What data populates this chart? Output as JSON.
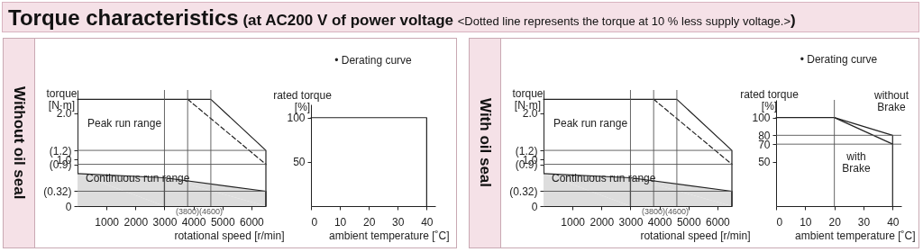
{
  "chart_data": [
    {
      "type": "line",
      "title": "Torque characteristics (at AC200 V of power voltage <Dotted line represents the torque at 10 % less supply voltage.>)",
      "subtitle": "Without oil seal",
      "xlabel": "rotational speed [r/min]",
      "ylabel": "torque\n[N·m]",
      "xlim": [
        0,
        6500
      ],
      "ylim": [
        0,
        2.5
      ],
      "xticks": [
        1000,
        2000,
        3000,
        4000,
        5000,
        6000
      ],
      "yticks": [
        0,
        {
          "value": 0.32,
          "label": "(0.32)"
        },
        {
          "value": 0.9,
          "label": "(0.9)"
        },
        {
          "value": 1,
          "label": "1.0"
        },
        {
          "value": 1.2,
          "label": "(1.2)"
        },
        {
          "value": 2,
          "label": "2.0"
        }
      ],
      "series": [
        {
          "type": "area",
          "color": "#dddddd",
          "x": [
            0,
            3000,
            6500
          ],
          "values": [
            0.7,
            0.61,
            0.32
          ]
        },
        {
          "color": "#222222",
          "x": [
            0,
            4600,
            6500,
            6500
          ],
          "values": [
            2.3,
            2.3,
            1.2,
            0
          ]
        },
        {
          "color": "#222222",
          "line_style": "dashed",
          "x": [
            3800,
            6500
          ],
          "values": [
            2.3,
            0.9
          ]
        }
      ],
      "ref_lines": [
        {
          "axis": "y",
          "value": 1.2,
          "color": "#555555"
        },
        {
          "axis": "y",
          "value": 0.9,
          "color": "#555555"
        },
        {
          "axis": "y",
          "value": 0.32,
          "color": "#555555"
        },
        {
          "axis": "x",
          "value": 3000,
          "color": "#555555"
        },
        {
          "axis": "x",
          "value": 3800,
          "color": "#555555"
        },
        {
          "axis": "x",
          "value": 4600,
          "color": "#555555"
        }
      ],
      "annotations": [
        "Peak run range",
        "Continuous run range",
        "(3800)",
        "(4600)"
      ]
    },
    {
      "type": "line",
      "title": "• Derating curve",
      "xlabel": "ambient temperature [˚C]",
      "ylabel": "rated torque\n[%]",
      "xlim": [
        0,
        43
      ],
      "ylim": [
        0,
        115
      ],
      "xticks": [
        0,
        10,
        20,
        30,
        40
      ],
      "yticks": [
        50,
        100
      ],
      "series": [
        {
          "color": "#222222",
          "x": [
            0,
            40,
            40
          ],
          "values": [
            100,
            100,
            0
          ]
        }
      ]
    },
    {
      "type": "line",
      "subtitle": "With oil seal",
      "xlabel": "rotational speed [r/min]",
      "ylabel": "torque\n[N·m]",
      "xlim": [
        0,
        6500
      ],
      "ylim": [
        0,
        2.5
      ],
      "xticks": [
        1000,
        2000,
        3000,
        4000,
        5000,
        6000
      ],
      "yticks": [
        0,
        {
          "value": 0.32,
          "label": "(0.32)"
        },
        {
          "value": 0.9,
          "label": "(0.9)"
        },
        {
          "value": 1,
          "label": "1.0"
        },
        {
          "value": 1.2,
          "label": "(1.2)"
        },
        {
          "value": 2,
          "label": "2.0"
        }
      ],
      "series": [
        {
          "type": "area",
          "color": "#dddddd",
          "x": [
            0,
            3000,
            6500
          ],
          "values": [
            0.7,
            0.61,
            0.32
          ]
        },
        {
          "color": "#222222",
          "x": [
            0,
            4600,
            6500,
            6500
          ],
          "values": [
            2.3,
            2.3,
            1.2,
            0
          ]
        },
        {
          "color": "#222222",
          "line_style": "dashed",
          "x": [
            3800,
            6500
          ],
          "values": [
            2.3,
            0.9
          ]
        }
      ],
      "ref_lines": [
        {
          "axis": "y",
          "value": 1.2,
          "color": "#555555"
        },
        {
          "axis": "y",
          "value": 0.9,
          "color": "#555555"
        },
        {
          "axis": "y",
          "value": 0.32,
          "color": "#555555"
        },
        {
          "axis": "x",
          "value": 3000,
          "color": "#555555"
        },
        {
          "axis": "x",
          "value": 3800,
          "color": "#555555"
        },
        {
          "axis": "x",
          "value": 4600,
          "color": "#555555"
        }
      ],
      "annotations": [
        "Peak run range",
        "Continuous run range",
        "(3800)",
        "(4600)"
      ]
    },
    {
      "type": "line",
      "title": "• Derating curve",
      "xlabel": "ambient temperature [˚C]",
      "ylabel": "rated torque\n[%]",
      "xlim": [
        0,
        43
      ],
      "ylim": [
        0,
        120
      ],
      "xticks": [
        0,
        10,
        20,
        30,
        40
      ],
      "yticks": [
        50,
        70,
        80,
        100
      ],
      "series": [
        {
          "color": "#222222",
          "x": [
            0,
            20,
            40,
            40
          ],
          "values": [
            100,
            100,
            80,
            0
          ]
        },
        {
          "color": "#222222",
          "x": [
            20,
            40
          ],
          "values": [
            100,
            70
          ]
        }
      ],
      "ref_lines": [
        {
          "axis": "y",
          "value": 80,
          "color": "#555555"
        },
        {
          "axis": "y",
          "value": 70,
          "color": "#555555"
        },
        {
          "axis": "x",
          "value": 20,
          "color": "#555555"
        }
      ],
      "annotations": [
        "without\nBrake",
        "with\nBrake"
      ]
    }
  ]
}
